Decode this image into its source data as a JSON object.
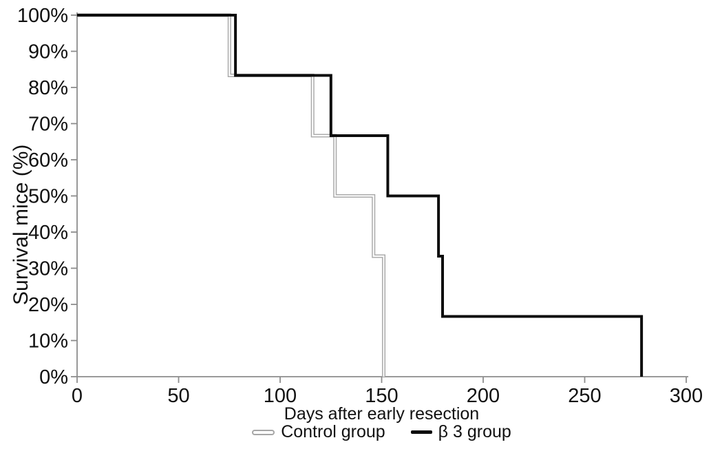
{
  "figure": {
    "background": "#ffffff",
    "text_color": "#111111",
    "axis_color": "#8c8c8c"
  },
  "chart_data": {
    "type": "line",
    "variant": "kaplan_meier_step_survival",
    "title": "",
    "xlabel": "Days after early resection",
    "ylabel": "Survival mice (%)",
    "xlim": [
      0,
      300
    ],
    "ylim": [
      0,
      100
    ],
    "x_ticks": [
      0,
      50,
      100,
      150,
      200,
      250,
      300
    ],
    "y_ticks": [
      0,
      10,
      20,
      30,
      40,
      50,
      60,
      70,
      80,
      90,
      100
    ],
    "y_tick_suffix": "%",
    "grid": false,
    "legend_position": "bottom",
    "series": [
      {
        "name": "Control group",
        "style": "outlined",
        "edge_color": "#a6a6a6",
        "core_color": "#fbfbfb",
        "points": [
          [
            0,
            100
          ],
          [
            75,
            100
          ],
          [
            75,
            83.33
          ],
          [
            116,
            83.33
          ],
          [
            116,
            66.67
          ],
          [
            127,
            66.67
          ],
          [
            127,
            50
          ],
          [
            146,
            50
          ],
          [
            146,
            33.33
          ],
          [
            151,
            33.33
          ],
          [
            151,
            0
          ]
        ]
      },
      {
        "name": "β 3 group",
        "style": "solid",
        "color": "#0c0c0c",
        "points": [
          [
            0,
            100
          ],
          [
            78,
            100
          ],
          [
            78,
            83.33
          ],
          [
            125,
            83.33
          ],
          [
            125,
            66.67
          ],
          [
            153,
            66.67
          ],
          [
            153,
            50
          ],
          [
            178,
            50
          ],
          [
            178,
            33.33
          ],
          [
            180,
            33.33
          ],
          [
            180,
            16.67
          ],
          [
            278,
            16.67
          ],
          [
            278,
            0
          ]
        ]
      }
    ]
  }
}
